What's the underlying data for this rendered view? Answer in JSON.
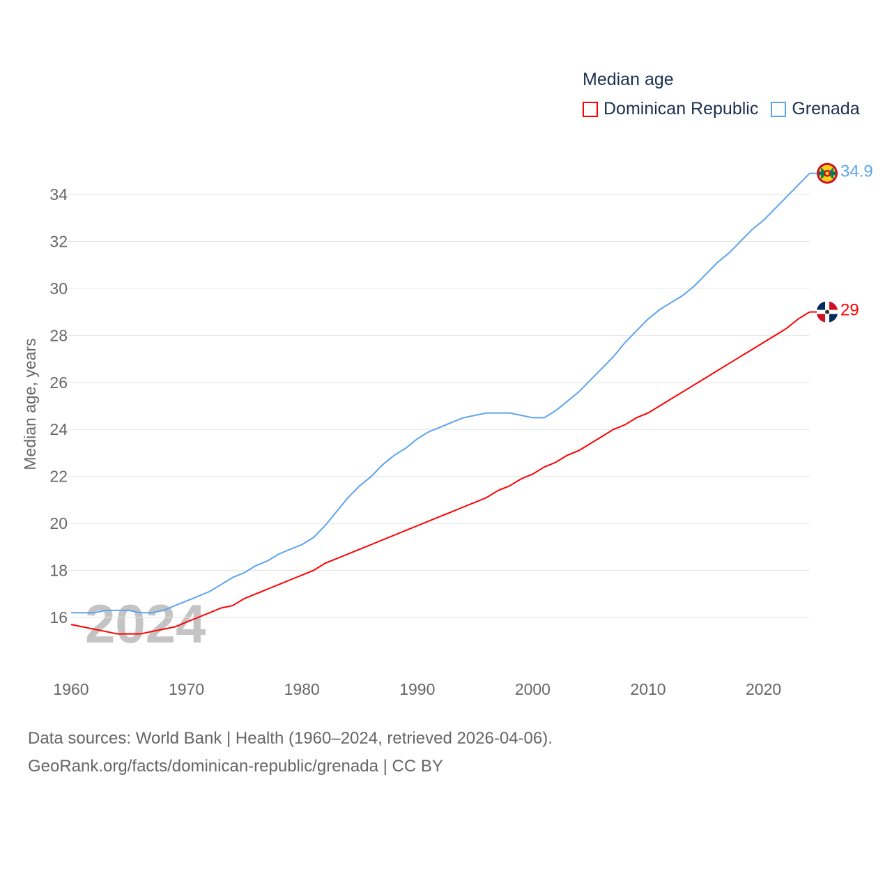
{
  "legend": {
    "title": "Median age",
    "items": [
      "Dominican Republic",
      "Grenada"
    ]
  },
  "footer": {
    "line1": "Data sources: World Bank | Health (1960–2024, retrieved 2026-04-06).",
    "line2": "GeoRank.org/facts/dominican-republic/grenada | CC BY"
  },
  "chart_data": {
    "type": "line",
    "title": "Median age",
    "xlabel": "",
    "ylabel": "Median age, years",
    "year_watermark": "2024",
    "xlim": [
      1960,
      2024
    ],
    "ylim": [
      14,
      35
    ],
    "xticks": [
      1960,
      1970,
      1980,
      1990,
      2000,
      2010,
      2020
    ],
    "yticks": [
      16,
      18,
      20,
      22,
      24,
      26,
      28,
      30,
      32,
      34
    ],
    "grid": true,
    "legend_position": "top-right",
    "x_start": 1960,
    "series": [
      {
        "name": "Dominican Republic",
        "color": "#ff0000",
        "end_label": "29",
        "flag": "dominican-republic",
        "values": [
          15.7,
          15.6,
          15.5,
          15.4,
          15.3,
          15.3,
          15.3,
          15.4,
          15.5,
          15.6,
          15.8,
          16.0,
          16.2,
          16.4,
          16.5,
          16.8,
          17.0,
          17.2,
          17.4,
          17.6,
          17.8,
          18.0,
          18.3,
          18.5,
          18.7,
          18.9,
          19.1,
          19.3,
          19.5,
          19.7,
          19.9,
          20.1,
          20.3,
          20.5,
          20.7,
          20.9,
          21.1,
          21.4,
          21.6,
          21.9,
          22.1,
          22.4,
          22.6,
          22.9,
          23.1,
          23.4,
          23.7,
          24.0,
          24.2,
          24.5,
          24.7,
          25.0,
          25.3,
          25.6,
          25.9,
          26.2,
          26.5,
          26.8,
          27.1,
          27.4,
          27.7,
          28.0,
          28.3,
          28.7,
          29.0
        ]
      },
      {
        "name": "Grenada",
        "color": "#5ba4ee",
        "end_label": "34.9",
        "flag": "grenada",
        "values": [
          16.2,
          16.2,
          16.2,
          16.3,
          16.3,
          16.3,
          16.2,
          16.2,
          16.3,
          16.5,
          16.7,
          16.9,
          17.1,
          17.4,
          17.7,
          17.9,
          18.2,
          18.4,
          18.7,
          18.9,
          19.1,
          19.4,
          19.9,
          20.5,
          21.1,
          21.6,
          22.0,
          22.5,
          22.9,
          23.2,
          23.6,
          23.9,
          24.1,
          24.3,
          24.5,
          24.6,
          24.7,
          24.7,
          24.7,
          24.6,
          24.5,
          24.5,
          24.8,
          25.2,
          25.6,
          26.1,
          26.6,
          27.1,
          27.7,
          28.2,
          28.7,
          29.1,
          29.4,
          29.7,
          30.1,
          30.6,
          31.1,
          31.5,
          32.0,
          32.5,
          32.9,
          33.4,
          33.9,
          34.4,
          34.9
        ]
      }
    ]
  }
}
